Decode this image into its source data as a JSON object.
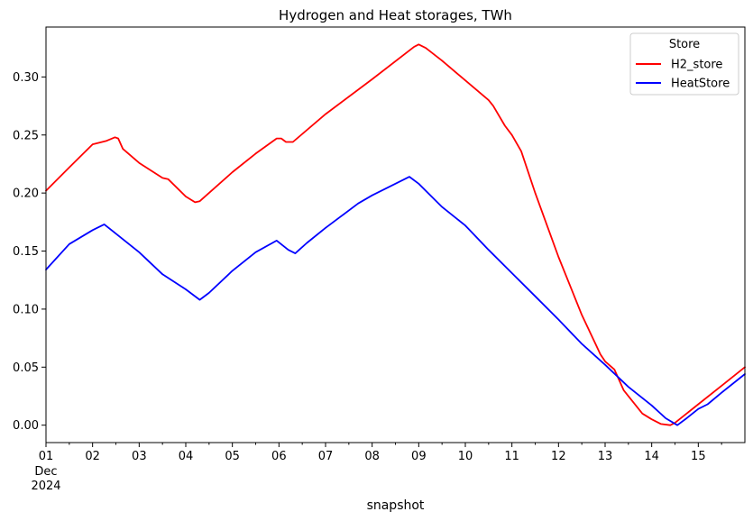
{
  "chart_data": {
    "type": "line",
    "title": "Hydrogen and Heat storages, TWh",
    "xlabel": "snapshot",
    "ylabel": "",
    "x_ticks": [
      "01",
      "02",
      "03",
      "04",
      "05",
      "06",
      "07",
      "08",
      "09",
      "10",
      "11",
      "12",
      "13",
      "14",
      "15"
    ],
    "x_first_tick_sublabels": [
      "Dec",
      "2024"
    ],
    "xlim": [
      1,
      16
    ],
    "y_ticks": [
      "0.00",
      "0.05",
      "0.10",
      "0.15",
      "0.20",
      "0.25",
      "0.30"
    ],
    "ylim": [
      -0.015,
      0.343
    ],
    "legend": {
      "title": "Store",
      "position": "top-right"
    },
    "series": [
      {
        "name": "H2_store",
        "color": "#ff0000",
        "x": [
          1.0,
          1.5,
          2.0,
          2.3,
          2.48,
          2.55,
          2.65,
          3.0,
          3.5,
          3.62,
          4.0,
          4.2,
          4.3,
          5.0,
          5.5,
          5.95,
          6.05,
          6.15,
          6.3,
          7.0,
          8.0,
          8.9,
          9.0,
          9.15,
          9.5,
          10.0,
          10.5,
          10.6,
          10.85,
          11.0,
          11.2,
          11.5,
          12.0,
          12.5,
          12.9,
          13.0,
          13.2,
          13.4,
          13.6,
          13.8,
          14.0,
          14.2,
          14.4,
          14.5,
          15.0,
          15.5,
          16.0
        ],
        "y": [
          0.202,
          0.222,
          0.242,
          0.245,
          0.248,
          0.247,
          0.238,
          0.226,
          0.213,
          0.212,
          0.197,
          0.192,
          0.193,
          0.218,
          0.234,
          0.247,
          0.247,
          0.244,
          0.244,
          0.268,
          0.298,
          0.326,
          0.328,
          0.325,
          0.314,
          0.297,
          0.28,
          0.275,
          0.258,
          0.25,
          0.236,
          0.2,
          0.145,
          0.095,
          0.061,
          0.055,
          0.048,
          0.03,
          0.02,
          0.01,
          0.005,
          0.001,
          0.0,
          0.002,
          0.018,
          0.034,
          0.05
        ]
      },
      {
        "name": "HeatStore",
        "color": "#0000ff",
        "x": [
          1.0,
          1.5,
          2.0,
          2.25,
          2.5,
          3.0,
          3.5,
          4.0,
          4.3,
          4.5,
          5.0,
          5.5,
          5.95,
          6.2,
          6.35,
          6.6,
          7.0,
          7.3,
          7.7,
          8.0,
          8.5,
          8.8,
          9.0,
          9.5,
          10.0,
          10.5,
          11.0,
          11.5,
          12.0,
          12.5,
          13.0,
          13.5,
          14.0,
          14.3,
          14.55,
          14.75,
          15.0,
          15.2,
          15.5,
          16.0
        ],
        "y": [
          0.134,
          0.156,
          0.168,
          0.173,
          0.165,
          0.149,
          0.13,
          0.117,
          0.108,
          0.114,
          0.133,
          0.149,
          0.159,
          0.151,
          0.148,
          0.157,
          0.17,
          0.179,
          0.191,
          0.198,
          0.208,
          0.214,
          0.208,
          0.188,
          0.172,
          0.151,
          0.131,
          0.111,
          0.091,
          0.07,
          0.052,
          0.033,
          0.017,
          0.006,
          0.0,
          0.006,
          0.014,
          0.018,
          0.028,
          0.044
        ]
      }
    ]
  }
}
